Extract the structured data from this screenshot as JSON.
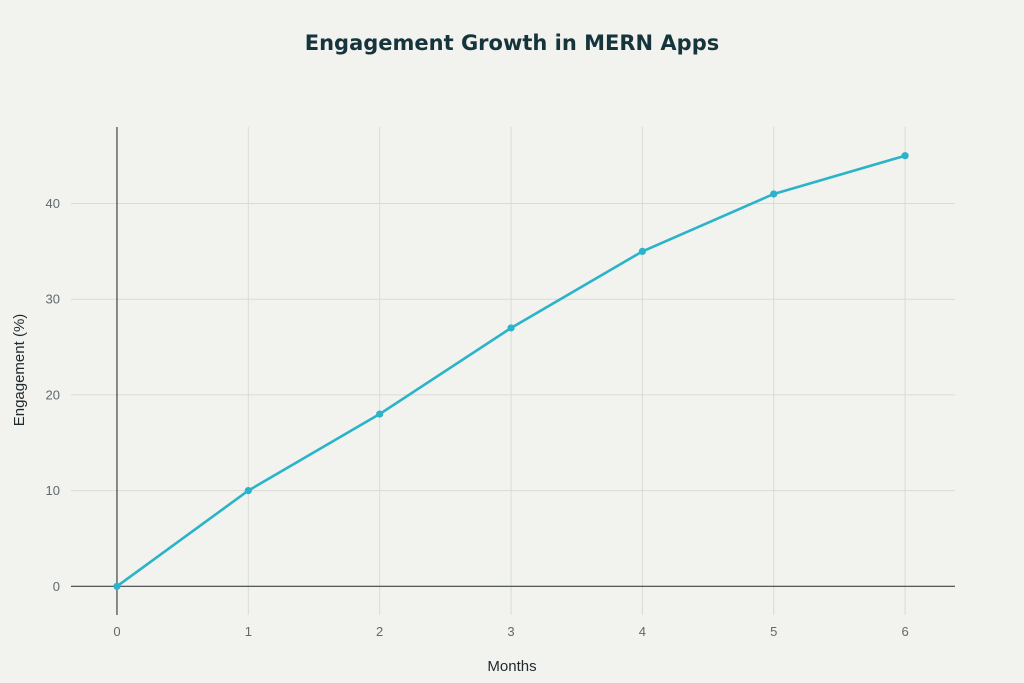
{
  "chart_data": {
    "type": "line",
    "title": "Engagement Growth in MERN Apps",
    "xlabel": "Months",
    "ylabel": "Engagement (%)",
    "x": [
      0,
      1,
      2,
      3,
      4,
      5,
      6
    ],
    "series": [
      {
        "values": [
          0,
          10,
          18,
          27,
          35,
          41,
          45
        ],
        "color": "#2bb3c9"
      }
    ],
    "x_ticks": [
      0,
      1,
      2,
      3,
      4,
      5,
      6
    ],
    "y_ticks": [
      0,
      10,
      20,
      30,
      40
    ],
    "xlim": [
      -0.35,
      6.38
    ],
    "ylim": [
      -3,
      48
    ],
    "grid": true,
    "markers": true
  }
}
